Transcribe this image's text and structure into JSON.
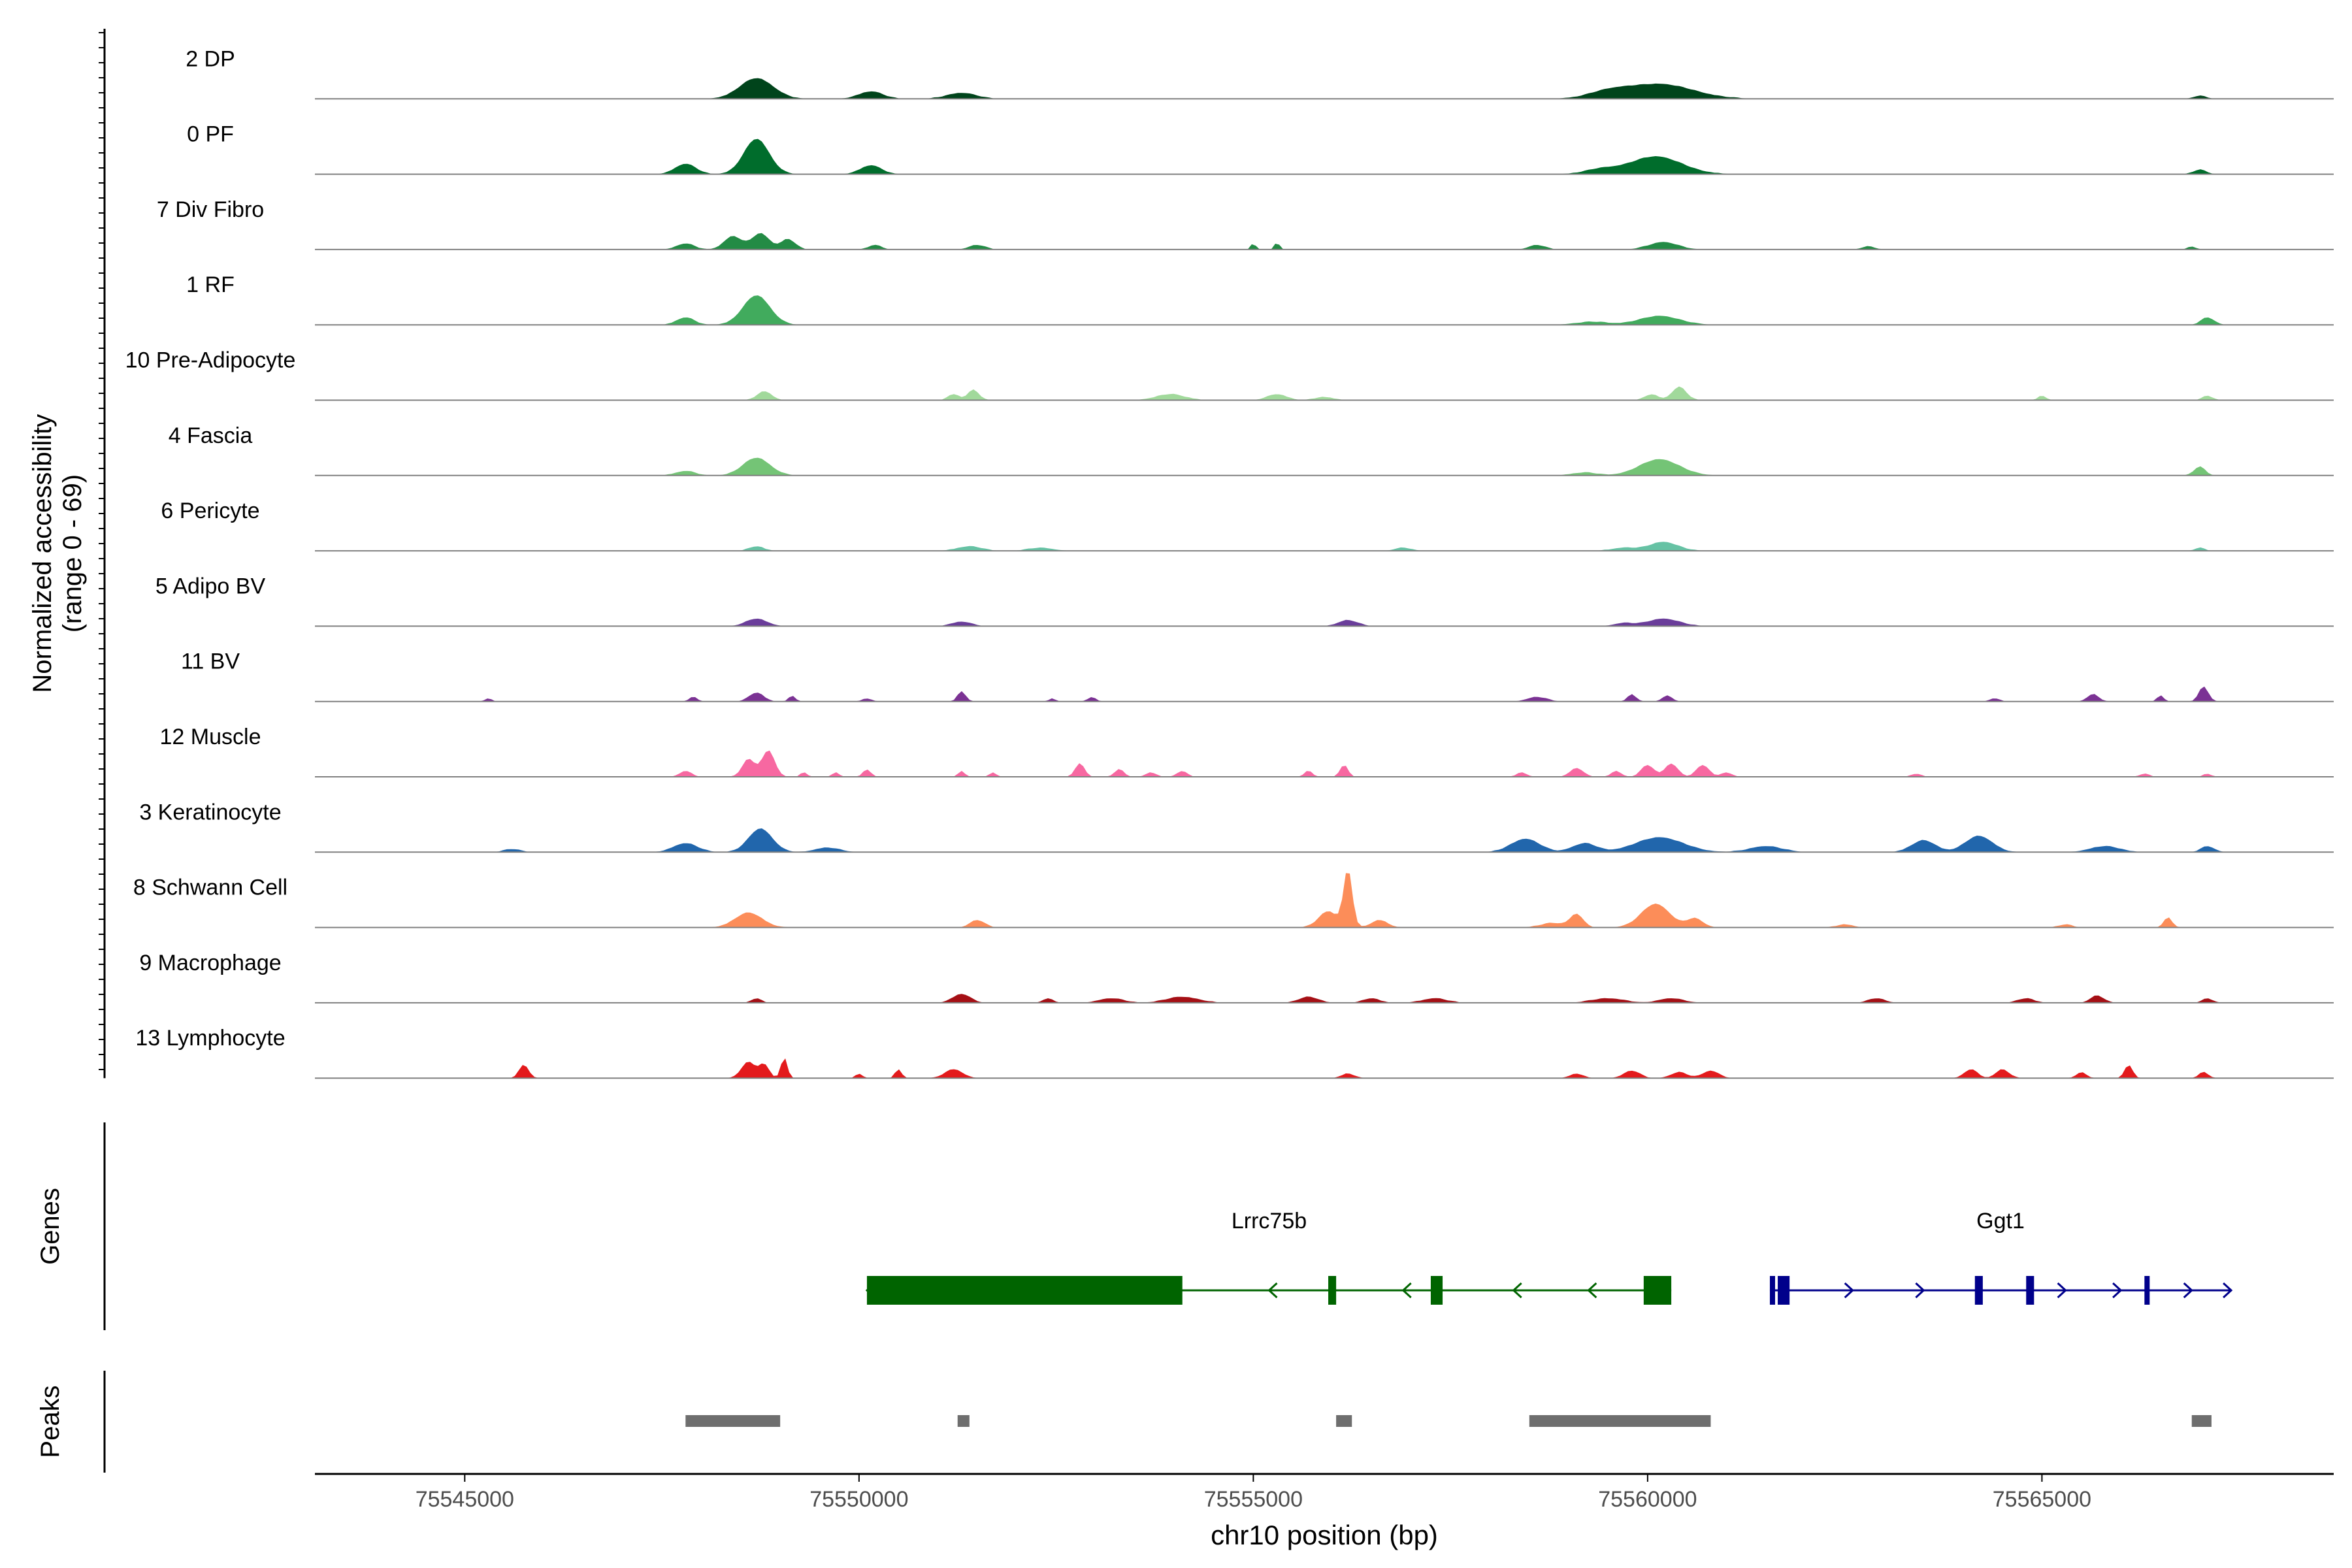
{
  "chart_data": {
    "type": "area",
    "x_label": "chr10 position (bp)",
    "x_range": [
      75543100,
      75568700
    ],
    "x_ticks": [
      {
        "value": 75545000,
        "label": "75545000"
      },
      {
        "value": 75550000,
        "label": "75550000"
      },
      {
        "value": 75555000,
        "label": "75555000"
      },
      {
        "value": 75560000,
        "label": "75560000"
      },
      {
        "value": 75565000,
        "label": "75565000"
      }
    ],
    "accessibility_axis": {
      "label_line1": "Normalized accessibility",
      "label_line2": "(range 0 - 69)",
      "range": [
        0,
        69
      ]
    },
    "tracks": [
      {
        "name": "2 DP",
        "color": "#00441b",
        "peaks": [
          [
            75548700,
            14,
            210
          ],
          [
            75550150,
            5,
            150
          ],
          [
            75551300,
            4,
            180
          ],
          [
            75560150,
            10,
            420
          ],
          [
            75559500,
            4,
            250
          ],
          [
            75567000,
            2,
            80
          ]
        ]
      },
      {
        "name": "0 PF",
        "color": "#006d2c",
        "peaks": [
          [
            75548700,
            24,
            160
          ],
          [
            75547800,
            7,
            130
          ],
          [
            75550150,
            6,
            130
          ],
          [
            75560100,
            12,
            330
          ],
          [
            75559400,
            3,
            200
          ],
          [
            75567000,
            3,
            80
          ]
        ]
      },
      {
        "name": "7 Div Fibro",
        "color": "#238b45",
        "peaks": [
          [
            75548400,
            9,
            110
          ],
          [
            75548750,
            11,
            110
          ],
          [
            75549100,
            7,
            90
          ],
          [
            75547800,
            4,
            110
          ],
          [
            75550200,
            3,
            80
          ],
          [
            75551500,
            3,
            100
          ],
          [
            75555000,
            4,
            30
          ],
          [
            75555300,
            5,
            30
          ],
          [
            75558600,
            3,
            100
          ],
          [
            75560200,
            5,
            180
          ],
          [
            75562800,
            2,
            80
          ],
          [
            75566900,
            2,
            50
          ]
        ]
      },
      {
        "name": "1 RF",
        "color": "#41ab5d",
        "peaks": [
          [
            75548700,
            20,
            170
          ],
          [
            75547800,
            5,
            110
          ],
          [
            75560150,
            6,
            250
          ],
          [
            75559300,
            2,
            200
          ],
          [
            75567100,
            5,
            80
          ]
        ]
      },
      {
        "name": "10 Pre-Adipocyte",
        "color": "#a1d99b",
        "peaks": [
          [
            75548800,
            6,
            90
          ],
          [
            75551450,
            7,
            70
          ],
          [
            75551200,
            4,
            70
          ],
          [
            75553950,
            4,
            180
          ],
          [
            75555300,
            4,
            120
          ],
          [
            75560400,
            9,
            90
          ],
          [
            75560050,
            4,
            80
          ],
          [
            75555900,
            2,
            120
          ],
          [
            75565000,
            3,
            50
          ],
          [
            75567100,
            3,
            60
          ]
        ]
      },
      {
        "name": "4 Fascia",
        "color": "#74c476",
        "peaks": [
          [
            75548700,
            12,
            170
          ],
          [
            75547800,
            3,
            120
          ],
          [
            75560150,
            11,
            250
          ],
          [
            75559200,
            2,
            150
          ],
          [
            75567000,
            6,
            70
          ]
        ]
      },
      {
        "name": "6 Pericyte",
        "color": "#66c2a4",
        "peaks": [
          [
            75548700,
            3,
            90
          ],
          [
            75551400,
            3,
            150
          ],
          [
            75552300,
            2,
            150
          ],
          [
            75560200,
            6,
            180
          ],
          [
            75559700,
            2,
            150
          ],
          [
            75556900,
            2,
            100
          ],
          [
            75567000,
            2,
            60
          ]
        ]
      },
      {
        "name": "5 Adipo BV",
        "color": "#6a3d9a",
        "peaks": [
          [
            75548700,
            5,
            130
          ],
          [
            75551300,
            3,
            120
          ],
          [
            75556200,
            4,
            120
          ],
          [
            75560200,
            5,
            200
          ],
          [
            75559700,
            2,
            120
          ]
        ]
      },
      {
        "name": "11 BV",
        "color": "#7b3294",
        "peaks": [
          [
            75545300,
            2,
            40
          ],
          [
            75547900,
            3,
            50
          ],
          [
            75548700,
            6,
            90
          ],
          [
            75549150,
            4,
            40
          ],
          [
            75550100,
            2,
            60
          ],
          [
            75551300,
            7,
            50
          ],
          [
            75552450,
            2,
            40
          ],
          [
            75552950,
            3,
            50
          ],
          [
            75558600,
            3,
            120
          ],
          [
            75559800,
            5,
            50
          ],
          [
            75560250,
            4,
            60
          ],
          [
            75564400,
            2,
            60
          ],
          [
            75565650,
            5,
            70
          ],
          [
            75566500,
            4,
            40
          ],
          [
            75567050,
            10,
            60
          ]
        ]
      },
      {
        "name": "12 Muscle",
        "color": "#f768a1",
        "peaks": [
          [
            75547800,
            4,
            70
          ],
          [
            75548600,
            12,
            80
          ],
          [
            75548850,
            18,
            80
          ],
          [
            75549300,
            3,
            40
          ],
          [
            75549700,
            3,
            40
          ],
          [
            75550100,
            5,
            50
          ],
          [
            75551300,
            4,
            40
          ],
          [
            75551700,
            3,
            40
          ],
          [
            75552800,
            9,
            60
          ],
          [
            75553300,
            5,
            60
          ],
          [
            75553700,
            3,
            60
          ],
          [
            75554100,
            4,
            60
          ],
          [
            75555700,
            4,
            50
          ],
          [
            75556150,
            8,
            50
          ],
          [
            75558400,
            3,
            60
          ],
          [
            75559100,
            6,
            80
          ],
          [
            75559600,
            4,
            60
          ],
          [
            75560000,
            8,
            80
          ],
          [
            75560300,
            9,
            80
          ],
          [
            75560700,
            8,
            80
          ],
          [
            75561000,
            3,
            60
          ],
          [
            75563400,
            2,
            60
          ],
          [
            75566300,
            2,
            60
          ],
          [
            75567100,
            2,
            50
          ]
        ]
      },
      {
        "name": "3 Keratinocyte",
        "color": "#2166ac",
        "peaks": [
          [
            75548750,
            16,
            150
          ],
          [
            75547800,
            6,
            150
          ],
          [
            75549600,
            3,
            150
          ],
          [
            75545600,
            2,
            100
          ],
          [
            75558450,
            9,
            180
          ],
          [
            75559200,
            6,
            150
          ],
          [
            75560150,
            10,
            300
          ],
          [
            75561500,
            4,
            200
          ],
          [
            75563500,
            8,
            150
          ],
          [
            75564200,
            11,
            170
          ],
          [
            75565800,
            4,
            180
          ],
          [
            75567100,
            4,
            80
          ]
        ]
      },
      {
        "name": "8 Schwann Cell",
        "color": "#fc8d59",
        "peaks": [
          [
            75548600,
            10,
            170
          ],
          [
            75551500,
            5,
            90
          ],
          [
            75556200,
            39,
            55
          ],
          [
            75555950,
            11,
            120
          ],
          [
            75556600,
            5,
            100
          ],
          [
            75558800,
            3,
            150
          ],
          [
            75559100,
            9,
            80
          ],
          [
            75560100,
            16,
            180
          ],
          [
            75560600,
            6,
            100
          ],
          [
            75562500,
            2,
            100
          ],
          [
            75565300,
            2,
            80
          ],
          [
            75566600,
            7,
            50
          ]
        ]
      },
      {
        "name": "9 Macrophage",
        "color": "#a50f15",
        "peaks": [
          [
            75548700,
            3,
            60
          ],
          [
            75551300,
            6,
            110
          ],
          [
            75552400,
            3,
            60
          ],
          [
            75553200,
            3,
            150
          ],
          [
            75554100,
            4,
            200
          ],
          [
            75555700,
            4,
            120
          ],
          [
            75556500,
            3,
            100
          ],
          [
            75557300,
            3,
            150
          ],
          [
            75559500,
            3,
            200
          ],
          [
            75560300,
            3,
            150
          ],
          [
            75562900,
            3,
            100
          ],
          [
            75564800,
            3,
            100
          ],
          [
            75565700,
            5,
            80
          ],
          [
            75567100,
            3,
            60
          ]
        ]
      },
      {
        "name": "13 Lymphocyte",
        "color": "#e31a1c",
        "peaks": [
          [
            75545750,
            9,
            60
          ],
          [
            75548600,
            11,
            90
          ],
          [
            75548800,
            9,
            60
          ],
          [
            75549050,
            14,
            40
          ],
          [
            75550000,
            3,
            40
          ],
          [
            75550500,
            6,
            40
          ],
          [
            75551200,
            6,
            110
          ],
          [
            75556200,
            3,
            80
          ],
          [
            75559100,
            3,
            80
          ],
          [
            75559800,
            5,
            100
          ],
          [
            75560400,
            4,
            100
          ],
          [
            75560800,
            5,
            100
          ],
          [
            75564100,
            6,
            80
          ],
          [
            75564500,
            6,
            80
          ],
          [
            75565500,
            4,
            60
          ],
          [
            75566100,
            9,
            50
          ],
          [
            75567050,
            4,
            60
          ]
        ]
      }
    ],
    "genes_label": "Genes",
    "genes": [
      {
        "name": "Lrrc75b",
        "strand": "-",
        "color": "#006400",
        "start": 75550100,
        "end": 75560300,
        "exons": [
          [
            75550100,
            75554100
          ],
          [
            75555950,
            75556050
          ],
          [
            75557250,
            75557400
          ],
          [
            75559950,
            75560300
          ]
        ],
        "arrow_positions": [
          75555200,
          75556900,
          75558300,
          75559250
        ]
      },
      {
        "name": "Ggt1",
        "strand": "+",
        "color": "#00008b",
        "start": 75561550,
        "end": 75567400,
        "exons": [
          [
            75561550,
            75561600
          ],
          [
            75561650,
            75561800
          ],
          [
            75564150,
            75564250
          ],
          [
            75564800,
            75564900
          ],
          [
            75566300,
            75566350
          ]
        ],
        "arrow_positions": [
          75562600,
          75563500,
          75565300,
          75566000,
          75566900
        ]
      }
    ],
    "peaks_label": "Peaks",
    "peak_regions": [
      [
        75547800,
        75549000
      ],
      [
        75551250,
        75551400
      ],
      [
        75556050,
        75556250
      ],
      [
        75558500,
        75560800
      ],
      [
        75566900,
        75567150
      ]
    ]
  }
}
